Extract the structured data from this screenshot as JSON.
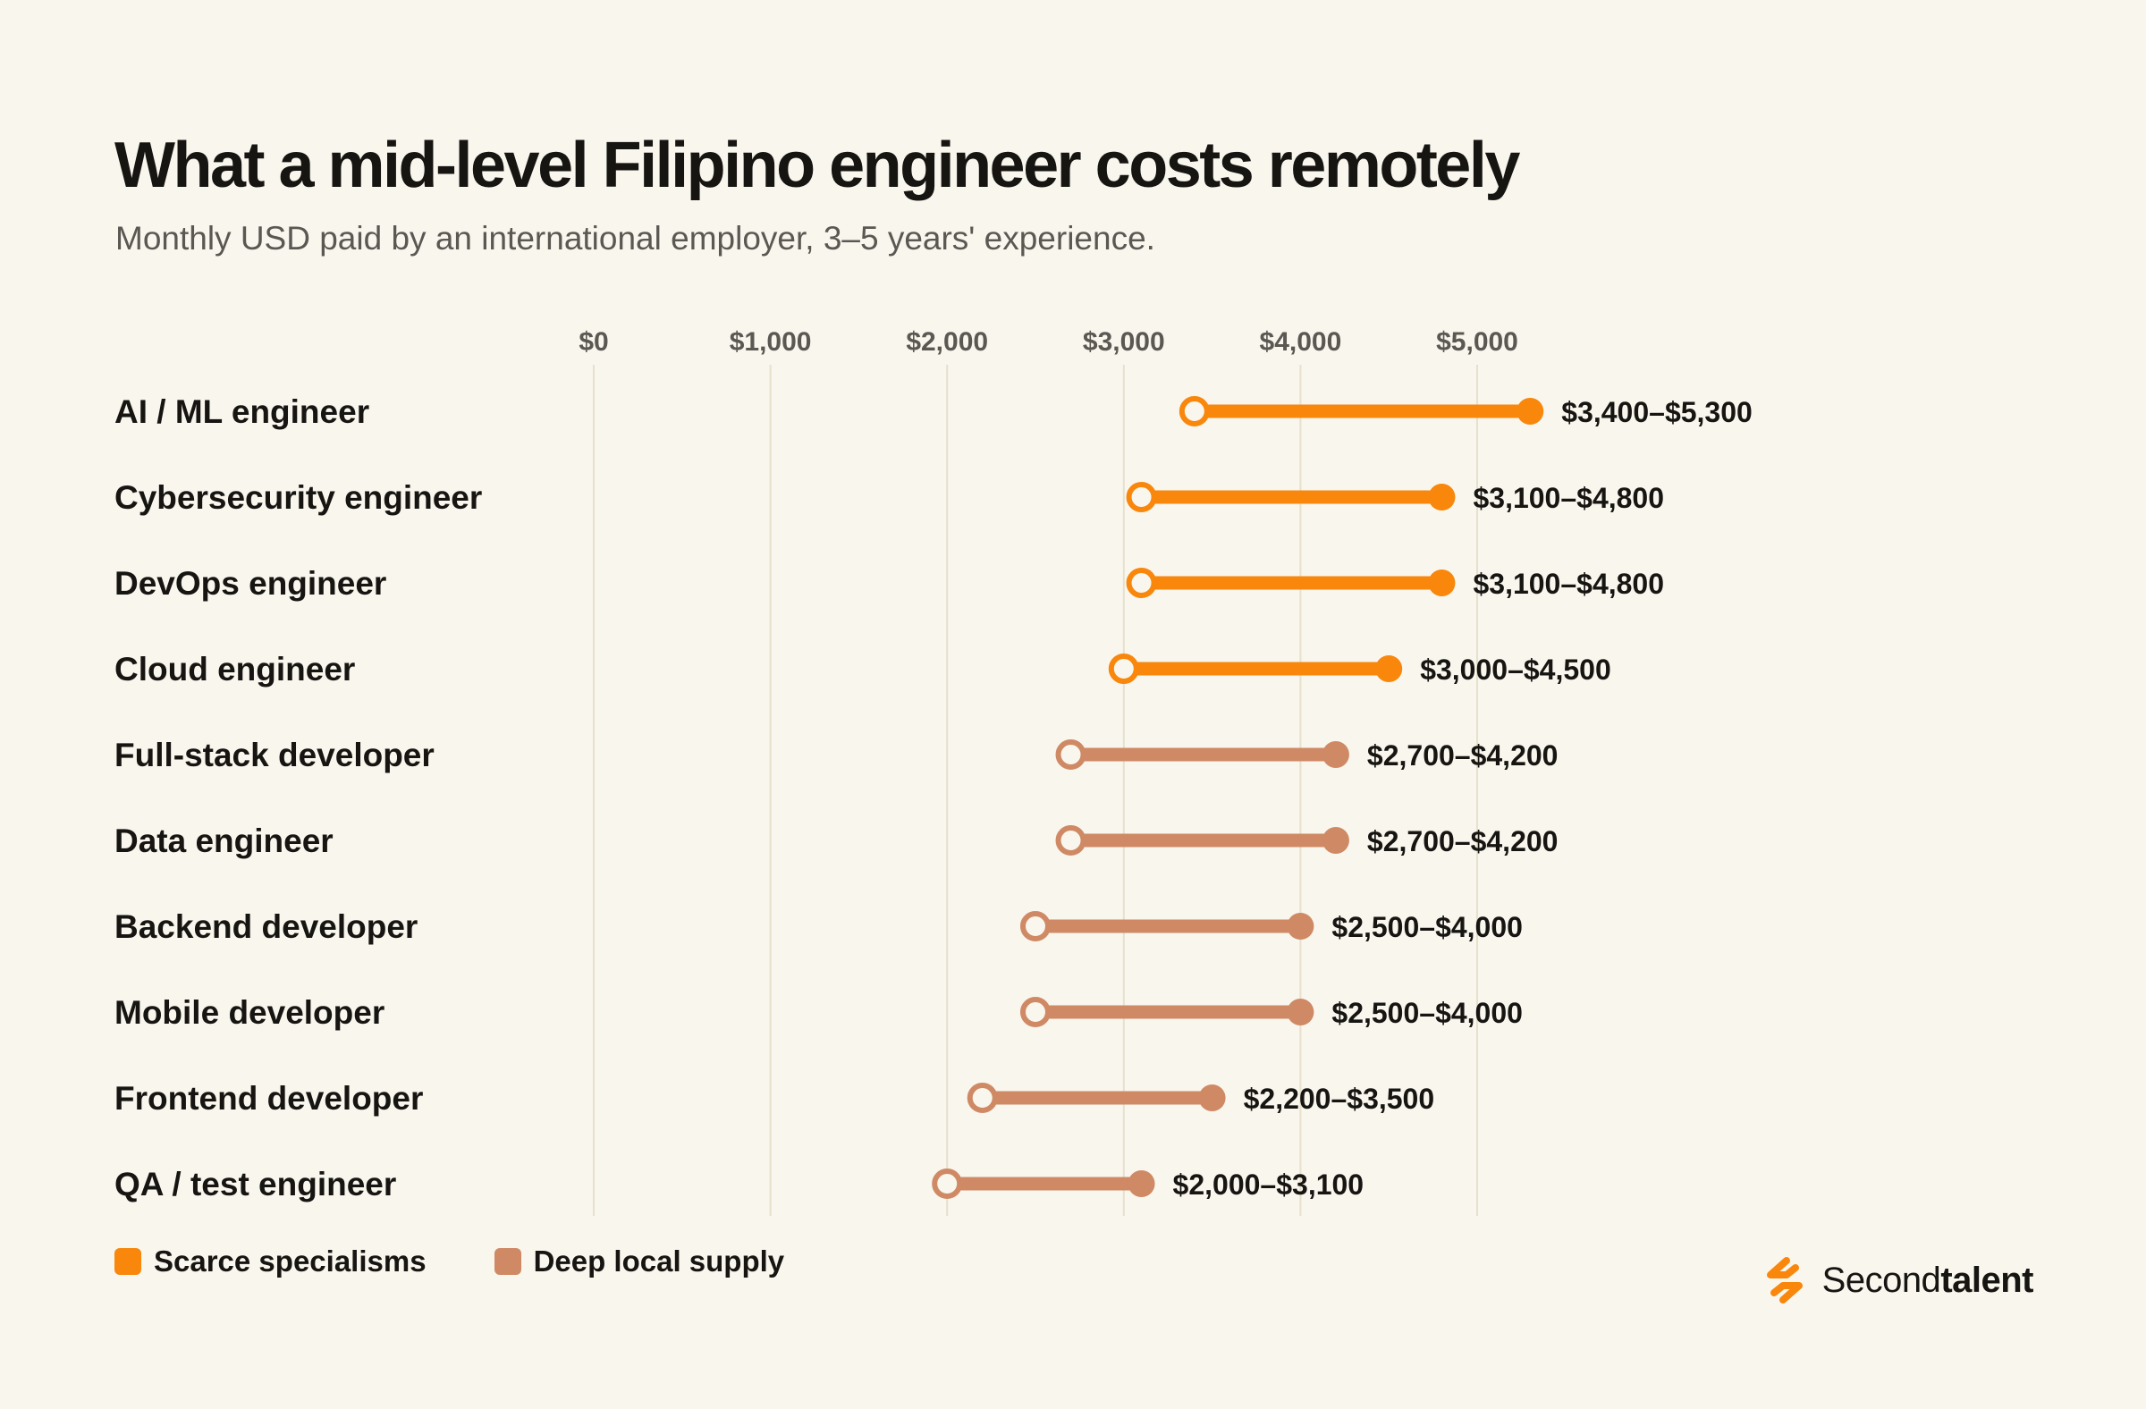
{
  "header": {
    "title": "What a mid-level Filipino engineer costs remotely",
    "subtitle": "Monthly USD paid by an international employer, 3–5 years' experience."
  },
  "colors": {
    "background": "#f9f6ee",
    "scarce": "#f8870c",
    "deep": "#cf8a65",
    "gridline": "#e6e0cc",
    "text": "#171512",
    "muted": "#5b5752"
  },
  "chart_data": {
    "type": "range-dot",
    "xlim": [
      0,
      5000
    ],
    "x_ticks": [
      0,
      1000,
      2000,
      3000,
      4000,
      5000
    ],
    "x_tick_labels": [
      "$0",
      "$1,000",
      "$2,000",
      "$3,000",
      "$4,000",
      "$5,000"
    ],
    "grid": true,
    "legend_position": "bottom-left",
    "rows": [
      {
        "label": "AI / ML engineer",
        "low": 3400,
        "high": 5300,
        "range_label": "$3,400–$5,300",
        "group": "scarce"
      },
      {
        "label": "Cybersecurity engineer",
        "low": 3100,
        "high": 4800,
        "range_label": "$3,100–$4,800",
        "group": "scarce"
      },
      {
        "label": "DevOps engineer",
        "low": 3100,
        "high": 4800,
        "range_label": "$3,100–$4,800",
        "group": "scarce"
      },
      {
        "label": "Cloud engineer",
        "low": 3000,
        "high": 4500,
        "range_label": "$3,000–$4,500",
        "group": "scarce"
      },
      {
        "label": "Full-stack developer",
        "low": 2700,
        "high": 4200,
        "range_label": "$2,700–$4,200",
        "group": "deep"
      },
      {
        "label": "Data engineer",
        "low": 2700,
        "high": 4200,
        "range_label": "$2,700–$4,200",
        "group": "deep"
      },
      {
        "label": "Backend developer",
        "low": 2500,
        "high": 4000,
        "range_label": "$2,500–$4,000",
        "group": "deep"
      },
      {
        "label": "Mobile developer",
        "low": 2500,
        "high": 4000,
        "range_label": "$2,500–$4,000",
        "group": "deep"
      },
      {
        "label": "Frontend developer",
        "low": 2200,
        "high": 3500,
        "range_label": "$2,200–$3,500",
        "group": "deep"
      },
      {
        "label": "QA / test engineer",
        "low": 2000,
        "high": 3100,
        "range_label": "$2,000–$3,100",
        "group": "deep"
      }
    ],
    "legend": [
      {
        "group": "scarce",
        "label": "Scarce specialisms"
      },
      {
        "group": "deep",
        "label": "Deep local supply"
      }
    ]
  },
  "brand": {
    "name_regular": "Second",
    "name_bold": "talent",
    "logo_icon": "second-talent-logo-icon"
  }
}
